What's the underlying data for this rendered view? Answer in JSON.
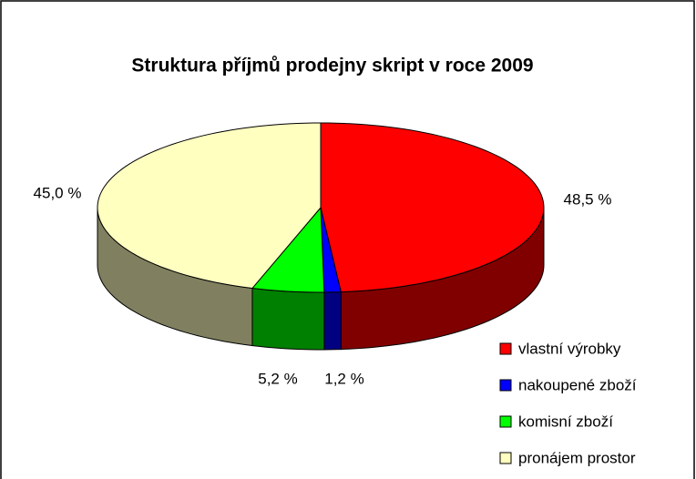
{
  "chart_data": {
    "type": "pie",
    "title": "Struktura příjmů prodejny skript v roce 2009",
    "categories": [
      "vlastní výrobky",
      "nakoupené zboží",
      "komisní zboží",
      "pronájem prostor"
    ],
    "values": [
      48.5,
      1.2,
      5.2,
      45.0
    ],
    "value_labels": [
      "48,5 %",
      "1,2 %",
      "5,2 %",
      "45,0 %"
    ],
    "colors": [
      "#ff0000",
      "#0000ff",
      "#00ff00",
      "#ffffc0"
    ],
    "side_colors": [
      "#800000",
      "#000080",
      "#008000",
      "#808060"
    ],
    "legend": "lower right"
  }
}
